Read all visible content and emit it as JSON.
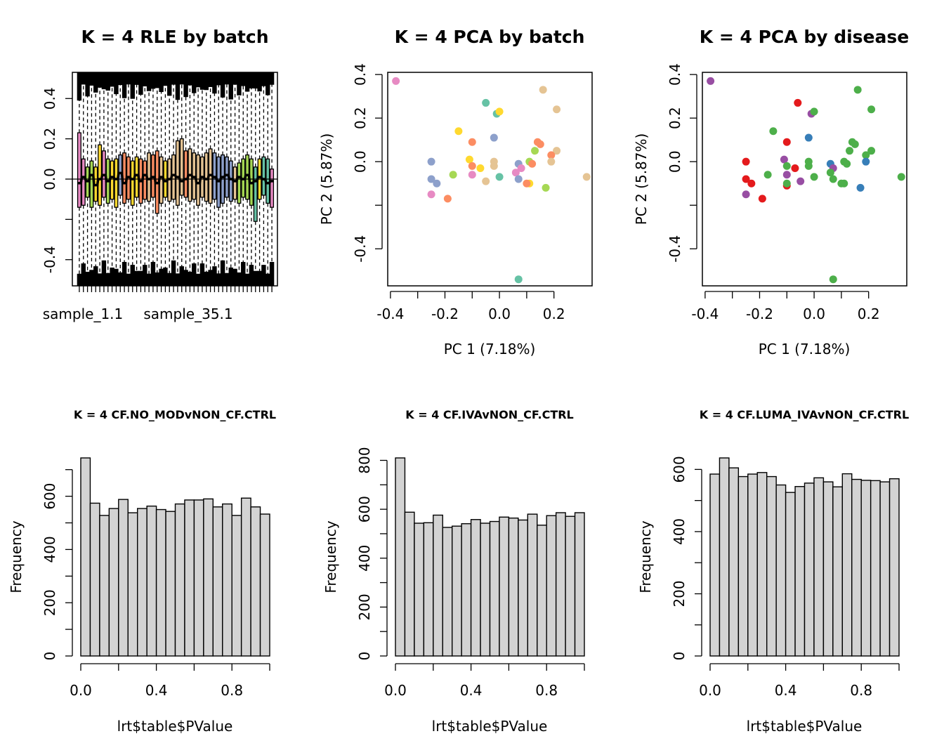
{
  "chart_data": [
    {
      "type": "boxplot",
      "title": "K = 4 RLE by batch",
      "xtick_labels": [
        "sample_1.1",
        "sample_35.1"
      ],
      "yticks": [
        -0.4,
        -0.2,
        0.0,
        0.2,
        0.4
      ],
      "ytick_labels": [
        "-0.4",
        "",
        "0.0",
        "0.2",
        "0.4"
      ],
      "ylim": [
        -0.53,
        0.53
      ],
      "n_samples": 48,
      "batch_colors": [
        "#E78AC3",
        "#A6D854",
        "#FFD92F",
        "#E5C494",
        "#8DA0CB",
        "#66C2A5",
        "#FC8D62"
      ],
      "sample_batch": [
        0,
        0,
        1,
        1,
        2,
        2,
        0,
        1,
        2,
        2,
        4,
        6,
        6,
        2,
        2,
        6,
        6,
        3,
        6,
        6,
        3,
        2,
        3,
        3,
        3,
        3,
        6,
        3,
        3,
        3,
        3,
        3,
        3,
        4,
        4,
        4,
        4,
        4,
        3,
        1,
        1,
        1,
        1,
        5,
        2,
        5,
        5,
        0
      ],
      "q1": [
        -0.14,
        -0.13,
        -0.09,
        -0.14,
        -0.11,
        -0.13,
        -0.09,
        -0.12,
        -0.1,
        -0.14,
        -0.08,
        -0.12,
        -0.1,
        -0.13,
        -0.09,
        -0.12,
        -0.1,
        -0.11,
        -0.09,
        -0.17,
        -0.12,
        -0.09,
        -0.11,
        -0.1,
        -0.13,
        -0.08,
        -0.09,
        -0.11,
        -0.1,
        -0.13,
        -0.09,
        -0.11,
        -0.12,
        -0.1,
        -0.14,
        -0.12,
        -0.09,
        -0.11,
        -0.1,
        -0.12,
        -0.09,
        -0.1,
        -0.13,
        -0.21,
        -0.1,
        -0.08,
        -0.12,
        -0.14
      ],
      "q3": [
        0.23,
        0.1,
        0.06,
        0.09,
        0.06,
        0.17,
        0.14,
        0.1,
        0.09,
        0.1,
        0.12,
        0.13,
        0.11,
        0.09,
        0.11,
        0.1,
        0.09,
        0.13,
        0.12,
        0.14,
        0.11,
        0.09,
        0.1,
        0.12,
        0.19,
        0.2,
        0.14,
        0.15,
        0.13,
        0.12,
        0.11,
        0.13,
        0.15,
        0.13,
        0.11,
        0.12,
        0.11,
        0.09,
        0.06,
        0.08,
        0.1,
        0.12,
        0.1,
        0.06,
        0.1,
        0.11,
        0.1,
        0.05
      ],
      "median": [
        -0.02,
        0.01,
        -0.01,
        0.02,
        -0.03,
        0.0,
        0.02,
        -0.01,
        0.01,
        0.0,
        0.03,
        -0.02,
        0.01,
        0.0,
        0.02,
        -0.01,
        0.02,
        0.0,
        0.01,
        -0.02,
        0.01,
        -0.01,
        0.0,
        0.02,
        0.01,
        -0.01,
        0.0,
        0.02,
        0.01,
        -0.02,
        0.01,
        0.0,
        0.02,
        0.01,
        -0.01,
        0.01,
        0.02,
        0.0,
        -0.01,
        0.01,
        0.0,
        0.02,
        -0.02,
        -0.01,
        0.01,
        0.0,
        -0.02,
        -0.01
      ]
    },
    {
      "type": "scatter",
      "title": "K = 4 PCA by batch",
      "xlabel": "PC 1 (7.18%)",
      "ylabel": "PC 2 (5.87%)",
      "xticks": [
        -0.4,
        -0.2,
        0.0,
        0.2
      ],
      "xtick_labels": [
        "-0.4",
        "-0.2",
        "0.0",
        "0.2"
      ],
      "yticks": [
        -0.4,
        -0.2,
        0.0,
        0.2,
        0.4
      ],
      "ytick_labels": [
        "-0.4",
        "",
        "0.0",
        "0.2",
        "0.4"
      ],
      "xlim": [
        -0.41,
        0.34
      ],
      "ylim": [
        -0.57,
        0.41
      ],
      "points": [
        {
          "x": -0.38,
          "y": 0.37,
          "color": "#E78AC3"
        },
        {
          "x": -0.05,
          "y": 0.27,
          "color": "#66C2A5"
        },
        {
          "x": -0.01,
          "y": 0.22,
          "color": "#66C2A5"
        },
        {
          "x": 0.0,
          "y": 0.23,
          "color": "#FFD92F"
        },
        {
          "x": 0.16,
          "y": 0.33,
          "color": "#E5C494"
        },
        {
          "x": 0.21,
          "y": 0.24,
          "color": "#E5C494"
        },
        {
          "x": -0.15,
          "y": 0.14,
          "color": "#FFD92F"
        },
        {
          "x": -0.1,
          "y": 0.09,
          "color": "#FC8D62"
        },
        {
          "x": -0.02,
          "y": 0.11,
          "color": "#8DA0CB"
        },
        {
          "x": 0.14,
          "y": 0.09,
          "color": "#FC8D62"
        },
        {
          "x": 0.15,
          "y": 0.08,
          "color": "#FC8D62"
        },
        {
          "x": 0.13,
          "y": 0.05,
          "color": "#A6D854"
        },
        {
          "x": 0.21,
          "y": 0.05,
          "color": "#E5C494"
        },
        {
          "x": 0.19,
          "y": 0.03,
          "color": "#FC8D62"
        },
        {
          "x": -0.25,
          "y": 0.0,
          "color": "#8DA0CB"
        },
        {
          "x": -0.11,
          "y": 0.01,
          "color": "#FFD92F"
        },
        {
          "x": -0.1,
          "y": -0.02,
          "color": "#FC8D62"
        },
        {
          "x": -0.07,
          "y": -0.03,
          "color": "#FFD92F"
        },
        {
          "x": -0.02,
          "y": 0.0,
          "color": "#E5C494"
        },
        {
          "x": -0.02,
          "y": -0.02,
          "color": "#E5C494"
        },
        {
          "x": 0.07,
          "y": -0.01,
          "color": "#8DA0CB"
        },
        {
          "x": 0.08,
          "y": -0.03,
          "color": "#E78AC3"
        },
        {
          "x": 0.11,
          "y": 0.0,
          "color": "#A6D854"
        },
        {
          "x": 0.12,
          "y": -0.01,
          "color": "#FC8D62"
        },
        {
          "x": 0.19,
          "y": 0.0,
          "color": "#E5C494"
        },
        {
          "x": -0.25,
          "y": -0.08,
          "color": "#8DA0CB"
        },
        {
          "x": -0.23,
          "y": -0.1,
          "color": "#8DA0CB"
        },
        {
          "x": -0.17,
          "y": -0.06,
          "color": "#A6D854"
        },
        {
          "x": -0.1,
          "y": -0.06,
          "color": "#E78AC3"
        },
        {
          "x": -0.05,
          "y": -0.09,
          "color": "#E5C494"
        },
        {
          "x": 0.0,
          "y": -0.07,
          "color": "#66C2A5"
        },
        {
          "x": 0.06,
          "y": -0.05,
          "color": "#E78AC3"
        },
        {
          "x": 0.07,
          "y": -0.08,
          "color": "#8DA0CB"
        },
        {
          "x": 0.11,
          "y": -0.1,
          "color": "#FFD92F"
        },
        {
          "x": 0.1,
          "y": -0.1,
          "color": "#FC8D62"
        },
        {
          "x": 0.17,
          "y": -0.12,
          "color": "#A6D854"
        },
        {
          "x": 0.32,
          "y": -0.07,
          "color": "#E5C494"
        },
        {
          "x": -0.25,
          "y": -0.15,
          "color": "#E78AC3"
        },
        {
          "x": -0.19,
          "y": -0.17,
          "color": "#FC8D62"
        },
        {
          "x": 0.07,
          "y": -0.54,
          "color": "#66C2A5"
        }
      ]
    },
    {
      "type": "scatter",
      "title": "K = 4 PCA by disease",
      "xlabel": "PC 1 (7.18%)",
      "ylabel": "PC 2 (5.87%)",
      "xticks": [
        -0.4,
        -0.2,
        0.0,
        0.2
      ],
      "xtick_labels": [
        "-0.4",
        "-0.2",
        "0.0",
        "0.2"
      ],
      "yticks": [
        -0.4,
        -0.2,
        0.0,
        0.2,
        0.4
      ],
      "ytick_labels": [
        "-0.4",
        "",
        "0.0",
        "0.2",
        "0.4"
      ],
      "xlim": [
        -0.41,
        0.34
      ],
      "ylim": [
        -0.57,
        0.41
      ],
      "points": [
        {
          "x": -0.38,
          "y": 0.37,
          "color": "#984EA3"
        },
        {
          "x": -0.06,
          "y": 0.27,
          "color": "#E41A1C"
        },
        {
          "x": -0.01,
          "y": 0.22,
          "color": "#984EA3"
        },
        {
          "x": 0.0,
          "y": 0.23,
          "color": "#4DAF4A"
        },
        {
          "x": 0.16,
          "y": 0.33,
          "color": "#4DAF4A"
        },
        {
          "x": 0.21,
          "y": 0.24,
          "color": "#4DAF4A"
        },
        {
          "x": -0.15,
          "y": 0.14,
          "color": "#4DAF4A"
        },
        {
          "x": -0.1,
          "y": 0.09,
          "color": "#E41A1C"
        },
        {
          "x": -0.02,
          "y": 0.11,
          "color": "#377EB8"
        },
        {
          "x": 0.14,
          "y": 0.09,
          "color": "#4DAF4A"
        },
        {
          "x": 0.15,
          "y": 0.08,
          "color": "#4DAF4A"
        },
        {
          "x": 0.13,
          "y": 0.05,
          "color": "#4DAF4A"
        },
        {
          "x": 0.21,
          "y": 0.05,
          "color": "#4DAF4A"
        },
        {
          "x": 0.19,
          "y": 0.03,
          "color": "#4DAF4A"
        },
        {
          "x": 0.19,
          "y": 0.0,
          "color": "#377EB8"
        },
        {
          "x": -0.25,
          "y": 0.0,
          "color": "#E41A1C"
        },
        {
          "x": -0.11,
          "y": 0.01,
          "color": "#984EA3"
        },
        {
          "x": -0.1,
          "y": -0.02,
          "color": "#4DAF4A"
        },
        {
          "x": -0.07,
          "y": -0.03,
          "color": "#E41A1C"
        },
        {
          "x": -0.02,
          "y": 0.0,
          "color": "#4DAF4A"
        },
        {
          "x": -0.02,
          "y": -0.02,
          "color": "#4DAF4A"
        },
        {
          "x": 0.06,
          "y": -0.01,
          "color": "#377EB8"
        },
        {
          "x": 0.07,
          "y": -0.03,
          "color": "#984EA3"
        },
        {
          "x": 0.11,
          "y": 0.0,
          "color": "#4DAF4A"
        },
        {
          "x": 0.12,
          "y": -0.01,
          "color": "#4DAF4A"
        },
        {
          "x": -0.25,
          "y": -0.08,
          "color": "#E41A1C"
        },
        {
          "x": -0.23,
          "y": -0.1,
          "color": "#E41A1C"
        },
        {
          "x": -0.17,
          "y": -0.06,
          "color": "#4DAF4A"
        },
        {
          "x": -0.1,
          "y": -0.06,
          "color": "#984EA3"
        },
        {
          "x": -0.05,
          "y": -0.09,
          "color": "#984EA3"
        },
        {
          "x": -0.1,
          "y": -0.11,
          "color": "#E41A1C"
        },
        {
          "x": -0.1,
          "y": -0.1,
          "color": "#4DAF4A"
        },
        {
          "x": 0.0,
          "y": -0.07,
          "color": "#4DAF4A"
        },
        {
          "x": 0.06,
          "y": -0.05,
          "color": "#4DAF4A"
        },
        {
          "x": 0.07,
          "y": -0.08,
          "color": "#4DAF4A"
        },
        {
          "x": 0.11,
          "y": -0.1,
          "color": "#4DAF4A"
        },
        {
          "x": 0.1,
          "y": -0.1,
          "color": "#4DAF4A"
        },
        {
          "x": 0.17,
          "y": -0.12,
          "color": "#377EB8"
        },
        {
          "x": 0.32,
          "y": -0.07,
          "color": "#4DAF4A"
        },
        {
          "x": -0.25,
          "y": -0.15,
          "color": "#984EA3"
        },
        {
          "x": -0.19,
          "y": -0.17,
          "color": "#E41A1C"
        },
        {
          "x": 0.07,
          "y": -0.54,
          "color": "#4DAF4A"
        }
      ]
    },
    {
      "type": "histogram",
      "title": "K = 4 CF.NO_MODvNON_CF.CTRL",
      "xlabel": "lrt$table$PValue",
      "ylabel": "Frequency",
      "bin_width": 0.05,
      "values": [
        744,
        574,
        528,
        554,
        588,
        538,
        554,
        563,
        550,
        543,
        571,
        586,
        586,
        590,
        560,
        571,
        528,
        593,
        560,
        533
      ],
      "xticks": [
        0.0,
        0.2,
        0.4,
        0.6,
        0.8,
        1.0
      ],
      "xtick_labels": [
        "0.0",
        "",
        "0.4",
        "",
        "0.8",
        ""
      ],
      "yticks": [
        0,
        100,
        200,
        300,
        400,
        500,
        600,
        700
      ],
      "ytick_labels": [
        "0",
        "",
        "200",
        "",
        "400",
        "",
        "600",
        ""
      ],
      "ylim": [
        0,
        744
      ]
    },
    {
      "type": "histogram",
      "title": "K = 4 CF.IVAvNON_CF.CTRL",
      "xlabel": "lrt$table$PValue",
      "ylabel": "Frequency",
      "bin_width": 0.05,
      "values": [
        810,
        588,
        543,
        545,
        576,
        526,
        531,
        541,
        558,
        543,
        550,
        568,
        564,
        556,
        580,
        535,
        574,
        586,
        571,
        586
      ],
      "xticks": [
        0.0,
        0.2,
        0.4,
        0.6,
        0.8,
        1.0
      ],
      "xtick_labels": [
        "0.0",
        "",
        "0.4",
        "",
        "0.8",
        ""
      ],
      "yticks": [
        0,
        100,
        200,
        300,
        400,
        500,
        600,
        700,
        800
      ],
      "ytick_labels": [
        "0",
        "",
        "200",
        "",
        "400",
        "",
        "600",
        "",
        "800"
      ],
      "ylim": [
        0,
        810
      ]
    },
    {
      "type": "histogram",
      "title": "K = 4 CF.LUMA_IVAvNON_CF.CTRL",
      "xlabel": "lrt$table$PValue",
      "ylabel": "Frequency",
      "bin_width": 0.05,
      "values": [
        585,
        637,
        605,
        577,
        585,
        590,
        577,
        550,
        526,
        545,
        556,
        573,
        560,
        544,
        586,
        568,
        565,
        564,
        560,
        570
      ],
      "xticks": [
        0.0,
        0.2,
        0.4,
        0.6,
        0.8,
        1.0
      ],
      "xtick_labels": [
        "0.0",
        "",
        "0.4",
        "",
        "0.8",
        ""
      ],
      "yticks": [
        0,
        100,
        200,
        300,
        400,
        500,
        600
      ],
      "ytick_labels": [
        "0",
        "",
        "200",
        "",
        "400",
        "",
        "600"
      ],
      "ylim": [
        0,
        637
      ]
    }
  ]
}
